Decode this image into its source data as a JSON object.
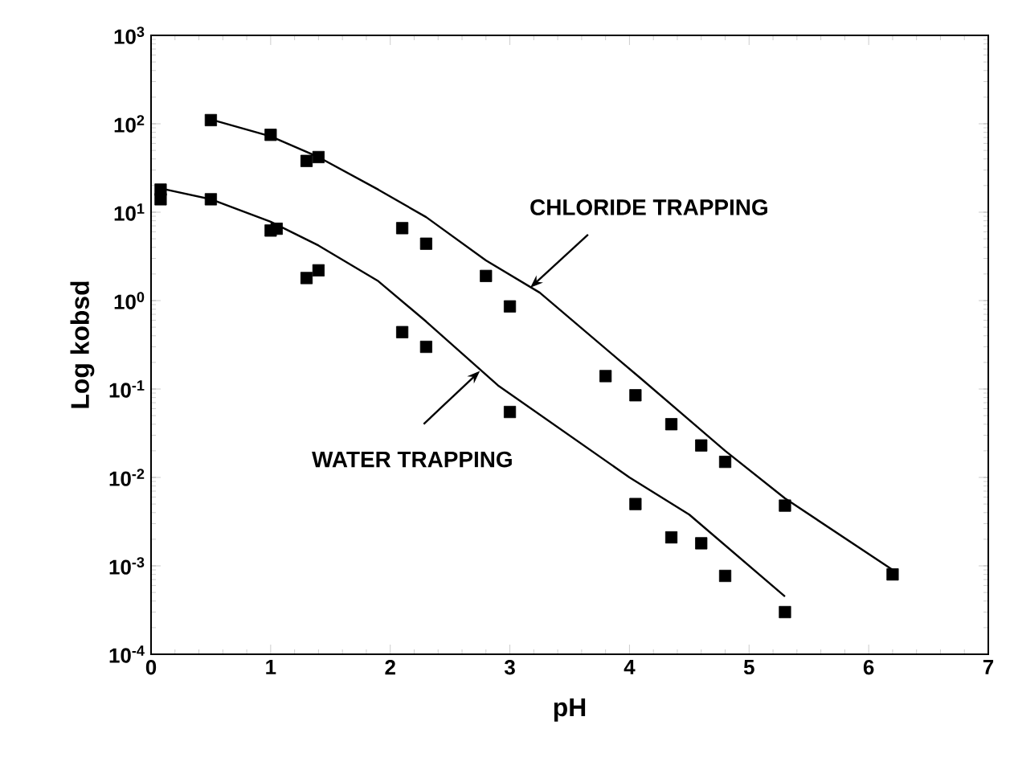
{
  "chart_data": {
    "type": "scatter",
    "xlabel": "pH",
    "ylabel": "Log kobsd",
    "log": "y",
    "marker": "square",
    "xlim": [
      0,
      7
    ],
    "ylim": [
      0.0001,
      1000
    ],
    "xticks": [
      0,
      1,
      2,
      3,
      4,
      5,
      6,
      7
    ],
    "yticks": [
      {
        "value": 0.0001,
        "label": "10$^{-4}$"
      },
      {
        "value": 0.001,
        "label": "10$^{-3}$"
      },
      {
        "value": 0.01,
        "label": "10$^{-2}$"
      },
      {
        "value": 0.1,
        "label": "10$^{-1}$"
      },
      {
        "value": 1,
        "label": "10$^{0}$"
      },
      {
        "value": 10,
        "label": "10$^{1}$"
      },
      {
        "value": 100,
        "label": "10$^{2}$"
      },
      {
        "value": 1000,
        "label": "10$^{3}$"
      }
    ],
    "annotations": [
      {
        "text": "CHLORIDE TRAPPING",
        "x": 3.17,
        "y": 1.4
      },
      {
        "text": "WATER TRAPPING",
        "x": 2.75,
        "y": 0.16
      }
    ],
    "series": [
      {
        "color": "#000000",
        "x": [
          0.5,
          1.0,
          1.3,
          1.4,
          2.1,
          2.3,
          2.8,
          3.0,
          3.8,
          4.05,
          4.35,
          4.6,
          4.8,
          5.3,
          6.2
        ],
        "values": [
          110,
          75,
          38,
          42,
          6.6,
          4.4,
          1.9,
          0.86,
          0.14,
          0.085,
          0.04,
          0.023,
          0.015,
          0.0048,
          0.0008
        ]
      },
      {
        "color": "#000000",
        "x": [
          0.08,
          0.08,
          0.5,
          1.0,
          1.05,
          1.3,
          1.4,
          2.1,
          2.3,
          3.0,
          4.05,
          4.35,
          4.6,
          4.8,
          5.3
        ],
        "values": [
          18,
          14,
          14,
          6.2,
          6.5,
          1.8,
          2.2,
          0.44,
          0.3,
          0.055,
          0.005,
          0.0021,
          0.0018,
          0.00077,
          0.0003
        ]
      },
      {
        "type": "line",
        "marker": "none",
        "color": "#000000",
        "x": [
          0.5,
          1.0,
          1.4,
          1.9,
          2.3,
          2.8,
          3.25,
          3.9,
          4.1,
          4.8,
          5.3,
          6.2
        ],
        "values": [
          112,
          72,
          42,
          18,
          8.8,
          2.85,
          1.23,
          0.22,
          0.13,
          0.02,
          0.0058,
          0.0009
        ]
      },
      {
        "type": "line",
        "marker": "none",
        "color": "#000000",
        "x": [
          0.08,
          0.5,
          1.0,
          1.4,
          1.9,
          2.3,
          2.9,
          4.0,
          4.5,
          5.3
        ],
        "values": [
          18.6,
          14,
          7.8,
          4.2,
          1.66,
          0.58,
          0.11,
          0.01,
          0.0038,
          0.00045
        ]
      }
    ]
  }
}
